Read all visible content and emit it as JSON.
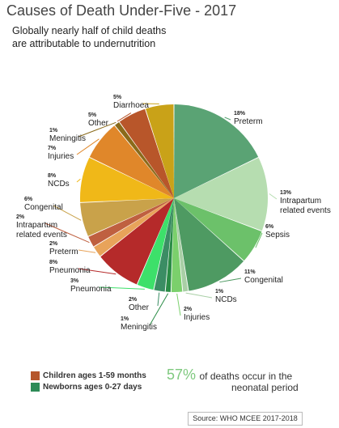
{
  "title": "Causes of Death Under-Five - 2017",
  "subtitle_lines": [
    "Globally nearly half of child deaths",
    "are attributable to undernutrition"
  ],
  "legend": [
    {
      "label": "Children ages 1-59 months",
      "color": "#b5562b"
    },
    {
      "label": "Newborns ages 0-27 days",
      "color": "#2e8b57"
    }
  ],
  "stat": {
    "value": "57%",
    "line1": "of deaths occur in the",
    "line2": "neonatal period"
  },
  "source": "Source: WHO MCEE 2017-2018",
  "chart_data": {
    "type": "pie",
    "slices": [
      {
        "pct": "18%",
        "value": 18,
        "label": [
          "Preterm"
        ],
        "group": "Newborns ages 0-27 days",
        "color": "#5aa374"
      },
      {
        "pct": "13%",
        "value": 13,
        "label": [
          "Intrapartum",
          "related events"
        ],
        "group": "Newborns ages 0-27 days",
        "color": "#b6ddb0"
      },
      {
        "pct": "6%",
        "value": 6,
        "label": [
          "Sepsis"
        ],
        "group": "Newborns ages 0-27 days",
        "color": "#6cc16a"
      },
      {
        "pct": "11%",
        "value": 11,
        "label": [
          "Congenital"
        ],
        "group": "Newborns ages 0-27 days",
        "color": "#4e9a62"
      },
      {
        "pct": "1%",
        "value": 1,
        "label": [
          "NCDs"
        ],
        "group": "Newborns ages 0-27 days",
        "color": "#a9cfa6"
      },
      {
        "pct": "2%",
        "value": 2,
        "label": [
          "Injuries"
        ],
        "group": "Newborns ages 0-27 days",
        "color": "#7bd06c"
      },
      {
        "pct": "1%",
        "value": 1,
        "label": [
          "Meningitis"
        ],
        "group": "Newborns ages 0-27 days",
        "color": "#2a8c46"
      },
      {
        "pct": "2%",
        "value": 2,
        "label": [
          "Other"
        ],
        "group": "Newborns ages 0-27 days",
        "color": "#3b8d64"
      },
      {
        "pct": "3%",
        "value": 3,
        "label": [
          "Pneumonia"
        ],
        "group": "Newborns ages 0-27 days",
        "color": "#3de06a"
      },
      {
        "pct": "8%",
        "value": 8,
        "label": [
          "Pneumonia"
        ],
        "group": "Children ages 1-59 months",
        "color": "#b52a2a"
      },
      {
        "pct": "2%",
        "value": 2,
        "label": [
          "Preterm"
        ],
        "group": "Children ages 1-59 months",
        "color": "#e8a35a"
      },
      {
        "pct": "2%",
        "value": 2,
        "label": [
          "Intrapartum",
          "related events"
        ],
        "group": "Children ages 1-59 months",
        "color": "#bf6040"
      },
      {
        "pct": "6%",
        "value": 6,
        "label": [
          "Congenital"
        ],
        "group": "Children ages 1-59 months",
        "color": "#c9a24a"
      },
      {
        "pct": "8%",
        "value": 8,
        "label": [
          "NCDs"
        ],
        "group": "Children ages 1-59 months",
        "color": "#f0b818"
      },
      {
        "pct": "7%",
        "value": 7,
        "label": [
          "Injuries"
        ],
        "group": "Children ages 1-59 months",
        "color": "#e0872a"
      },
      {
        "pct": "1%",
        "value": 1,
        "label": [
          "Meningitis"
        ],
        "group": "Children ages 1-59 months",
        "color": "#8a6a1a"
      },
      {
        "pct": "5%",
        "value": 5,
        "label": [
          "Other"
        ],
        "group": "Children ages 1-59 months",
        "color": "#b8562a"
      },
      {
        "pct": "5%",
        "value": 5,
        "label": [
          "Diarrhoea"
        ],
        "group": "Children ages 1-59 months",
        "color": "#c9a218"
      }
    ]
  }
}
